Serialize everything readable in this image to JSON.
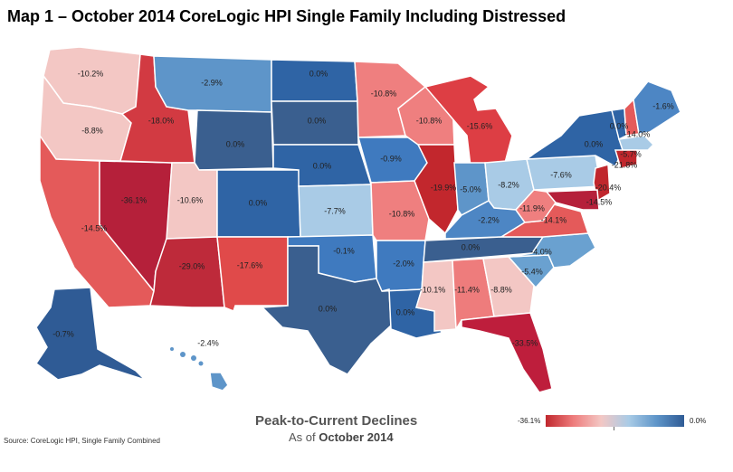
{
  "title": "Map 1 – October 2014 CoreLogic HPI Single Family Including Distressed",
  "legend": {
    "title": "Peak-to-Current Declines",
    "subtitle_prefix": "As of ",
    "subtitle_date": "October 2014",
    "min_label": "-36.1%",
    "max_label": "0.0%",
    "colors": [
      "#c0272d",
      "#ee7c7c",
      "#f3c7c4",
      "#a9cbe6",
      "#5e95c9",
      "#2f5b95"
    ]
  },
  "source": "Source: CoreLogic HPI, Single Family Combined",
  "states": [
    {
      "id": "WA",
      "value": "-10.2%",
      "color": "#f3c7c4"
    },
    {
      "id": "OR",
      "value": "-8.8%",
      "color": "#f3c7c4"
    },
    {
      "id": "CA",
      "value": "-14.5%",
      "color": "#e45a5a"
    },
    {
      "id": "NV",
      "value": "-36.1%",
      "color": "#b5203a"
    },
    {
      "id": "ID",
      "value": "-18.0%",
      "color": "#d23a42"
    },
    {
      "id": "MT",
      "value": "-2.9%",
      "color": "#5e95c9"
    },
    {
      "id": "WY",
      "value": "0.0%",
      "color": "#3a5f8f"
    },
    {
      "id": "UT",
      "value": "-10.6%",
      "color": "#f3c7c4"
    },
    {
      "id": "AZ",
      "value": "-29.0%",
      "color": "#be2a3a"
    },
    {
      "id": "CO",
      "value": "0.0%",
      "color": "#2f64a5"
    },
    {
      "id": "NM",
      "value": "-17.6%",
      "color": "#e04a4a"
    },
    {
      "id": "ND",
      "value": "0.0%",
      "color": "#2f64a5"
    },
    {
      "id": "SD",
      "value": "0.0%",
      "color": "#3a5f8f"
    },
    {
      "id": "NE",
      "value": "0.0%",
      "color": "#2f64a5"
    },
    {
      "id": "KS",
      "value": "-7.7%",
      "color": "#a9cbe6"
    },
    {
      "id": "OK",
      "value": "-0.1%",
      "color": "#3f7abf"
    },
    {
      "id": "TX",
      "value": "0.0%",
      "color": "#3a5f8f"
    },
    {
      "id": "MN",
      "value": "-10.8%",
      "color": "#ef7f7f"
    },
    {
      "id": "IA",
      "value": "-0.9%",
      "color": "#3f7abf"
    },
    {
      "id": "MO",
      "value": "-10.8%",
      "color": "#ef7f7f"
    },
    {
      "id": "AR",
      "value": "-2.0%",
      "color": "#3f7abf"
    },
    {
      "id": "LA",
      "value": "0.0%",
      "color": "#2f64a5"
    },
    {
      "id": "WI",
      "value": "-10.8%",
      "color": "#ef7f7f"
    },
    {
      "id": "IL",
      "value": "-19.9%",
      "color": "#c2272d"
    },
    {
      "id": "MI",
      "value": "-15.6%",
      "color": "#dd3e44"
    },
    {
      "id": "IN",
      "value": "-5.0%",
      "color": "#5e95c9"
    },
    {
      "id": "OH",
      "value": "-8.2%",
      "color": "#a9cbe6"
    },
    {
      "id": "KY",
      "value": "-2.2%",
      "color": "#4d86c4"
    },
    {
      "id": "TN",
      "value": "0.0%",
      "color": "#3a5f8f"
    },
    {
      "id": "MS",
      "value": "-10.1%",
      "color": "#f3c7c4"
    },
    {
      "id": "AL",
      "value": "-11.4%",
      "color": "#ee7c7c"
    },
    {
      "id": "GA",
      "value": "-8.8%",
      "color": "#f3c7c4"
    },
    {
      "id": "FL",
      "value": "-33.5%",
      "color": "#be1e3c"
    },
    {
      "id": "SC",
      "value": "-5.4%",
      "color": "#6aa1d0"
    },
    {
      "id": "NC",
      "value": "-4.0%",
      "color": "#6aa1d0"
    },
    {
      "id": "VA",
      "value": "-14.1%",
      "color": "#e45a5a"
    },
    {
      "id": "WV",
      "value": "-11.9%",
      "color": "#ef7f7f"
    },
    {
      "id": "PA",
      "value": "-7.6%",
      "color": "#a9cbe6"
    },
    {
      "id": "NY",
      "value": "0.0%",
      "color": "#2f64a5"
    },
    {
      "id": "VT",
      "value": "0.0%",
      "color": "#2f64a5"
    },
    {
      "id": "NH",
      "value": "-14.0%",
      "color": "#e45a5a"
    },
    {
      "id": "ME",
      "value": "-1.6%",
      "color": "#4d86c4"
    },
    {
      "id": "MA",
      "value": "-5.7%",
      "color": "#a9cbe6"
    },
    {
      "id": "CT",
      "value": "-21.8%",
      "color": "#c0272d"
    },
    {
      "id": "NJ",
      "value": "-20.4%",
      "color": "#c0272d"
    },
    {
      "id": "MD",
      "value": "-14.5%",
      "color": "#b5203a"
    },
    {
      "id": "AK",
      "value": "-0.7%",
      "color": "#2f5b95"
    },
    {
      "id": "HI",
      "value": "-2.4%",
      "color": "#5e95c9"
    }
  ]
}
